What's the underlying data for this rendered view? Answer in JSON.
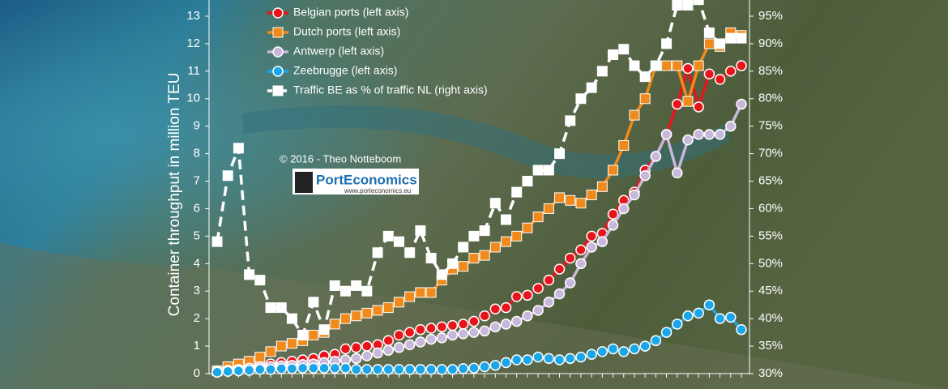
{
  "chart_data": {
    "type": "line",
    "y_label": "Container throughput in million TEU",
    "credit": "© 2016 - Theo Notteboom",
    "logo": "PortEconomics",
    "logo_url": "www.porteconomics.eu",
    "categories": [
      null,
      null,
      null,
      null,
      null,
      null,
      null,
      null,
      null,
      null,
      null,
      null,
      null,
      null,
      null,
      null,
      null,
      null,
      null,
      null,
      null,
      null,
      null,
      null,
      null,
      null,
      null,
      null,
      null,
      null,
      null,
      null,
      null,
      null,
      null,
      null,
      null,
      null,
      null,
      null,
      null,
      null,
      null,
      null,
      null,
      null,
      null,
      null,
      null,
      null
    ],
    "ylim": [
      0,
      13
    ],
    "yticks": [
      0,
      1,
      2,
      3,
      4,
      5,
      6,
      7,
      8,
      9,
      10,
      11,
      12,
      13
    ],
    "y2lim": [
      30,
      95
    ],
    "y2ticks": [
      {
        "value": 30,
        "label": "30%"
      },
      {
        "value": 35,
        "label": "35%"
      },
      {
        "value": 40,
        "label": "40%"
      },
      {
        "value": 45,
        "label": "45%"
      },
      {
        "value": 50,
        "label": "50%"
      },
      {
        "value": 55,
        "label": "55%"
      },
      {
        "value": 60,
        "label": "60%"
      },
      {
        "value": 65,
        "label": "65%"
      },
      {
        "value": 70,
        "label": "70%"
      },
      {
        "value": 75,
        "label": "75%"
      },
      {
        "value": 80,
        "label": "80%"
      },
      {
        "value": 85,
        "label": "85%"
      },
      {
        "value": 90,
        "label": "90%"
      },
      {
        "value": 95,
        "label": "95%"
      }
    ],
    "series": [
      {
        "name": "Belgian ports (left axis)",
        "color": "#e8141b",
        "marker": "circle",
        "dash": false,
        "values": [
          0.1,
          0.15,
          0.2,
          0.25,
          0.3,
          0.35,
          0.4,
          0.45,
          0.5,
          0.55,
          0.65,
          0.7,
          0.9,
          0.95,
          1.0,
          1.05,
          1.2,
          1.4,
          1.5,
          1.6,
          1.65,
          1.7,
          1.75,
          1.8,
          1.9,
          2.1,
          2.35,
          2.4,
          2.8,
          2.85,
          3.1,
          3.4,
          3.8,
          4.2,
          4.5,
          5.0,
          5.1,
          5.8,
          6.3,
          6.6,
          7.4,
          7.9,
          8.7,
          9.8,
          11.1,
          9.7,
          10.9,
          10.7,
          11.0,
          11.2
        ]
      },
      {
        "name": "Dutch ports (left axis)",
        "color": "#f08a1c",
        "marker": "square",
        "dash": false,
        "values": [
          0.1,
          0.25,
          0.35,
          0.45,
          0.6,
          0.8,
          1.0,
          1.1,
          1.2,
          1.4,
          1.5,
          1.8,
          2.0,
          2.1,
          2.2,
          2.3,
          2.4,
          2.6,
          2.8,
          2.95,
          2.95,
          3.4,
          3.8,
          3.9,
          4.2,
          4.3,
          4.6,
          4.8,
          5.0,
          5.3,
          5.7,
          6.0,
          6.4,
          6.3,
          6.2,
          6.5,
          6.8,
          7.4,
          8.3,
          9.4,
          10.0,
          11.2,
          11.2,
          11.2,
          9.9,
          11.2,
          12.0,
          11.9,
          12.4,
          12.3
        ]
      },
      {
        "name": "Antwerp (left axis)",
        "color": "#c9b8dc",
        "marker": "circle",
        "dash": false,
        "values": [
          0.1,
          0.12,
          0.15,
          0.2,
          0.22,
          0.25,
          0.28,
          0.3,
          0.33,
          0.35,
          0.4,
          0.45,
          0.5,
          0.55,
          0.65,
          0.75,
          0.85,
          0.95,
          1.05,
          1.15,
          1.25,
          1.3,
          1.4,
          1.45,
          1.5,
          1.55,
          1.7,
          1.8,
          1.9,
          2.1,
          2.3,
          2.6,
          2.9,
          3.3,
          4.0,
          4.6,
          4.8,
          5.4,
          6.0,
          6.5,
          7.2,
          7.9,
          8.7,
          7.3,
          8.5,
          8.7,
          8.7,
          8.7,
          9.0,
          9.8
        ]
      },
      {
        "name": "Zeebrugge (left axis)",
        "color": "#1aa6e8",
        "marker": "circle",
        "dash": false,
        "values": [
          0.05,
          0.08,
          0.1,
          0.12,
          0.15,
          0.15,
          0.18,
          0.18,
          0.2,
          0.2,
          0.2,
          0.2,
          0.2,
          0.15,
          0.15,
          0.15,
          0.15,
          0.15,
          0.15,
          0.15,
          0.15,
          0.15,
          0.15,
          0.18,
          0.2,
          0.25,
          0.3,
          0.4,
          0.5,
          0.5,
          0.6,
          0.55,
          0.5,
          0.55,
          0.6,
          0.7,
          0.8,
          0.9,
          0.8,
          0.9,
          1.0,
          1.2,
          1.5,
          1.8,
          2.1,
          2.2,
          2.5,
          2.0,
          2.05,
          1.6
        ]
      },
      {
        "name": "Traffic BE as % of traffic NL (right axis)",
        "color": "#ffffff",
        "marker": "square",
        "dash": true,
        "axis": "y2",
        "values": [
          54,
          66,
          71,
          48,
          47,
          42,
          42,
          40,
          37,
          43,
          38,
          46,
          45,
          46,
          45,
          52,
          55,
          54,
          52,
          56,
          51,
          48,
          50,
          53,
          55,
          56,
          61,
          58,
          63,
          65,
          67,
          67,
          70,
          76,
          80,
          82,
          85,
          88,
          89,
          86,
          84,
          86,
          90,
          97,
          97,
          98,
          92,
          90,
          91,
          91
        ]
      }
    ]
  }
}
